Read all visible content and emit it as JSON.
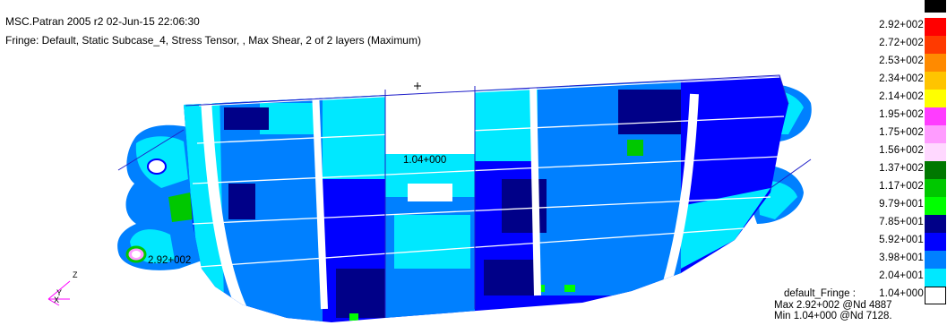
{
  "header": {
    "title": "MSC.Patran 2005 r2 02-Jun-15 22:06:30",
    "fringe_description": "Fringe: Default, Static Subcase_4, Stress Tensor, , Max Shear, 2 of 2 layers (Maximum)"
  },
  "legend": {
    "entries": [
      {
        "label": "",
        "color": "#000000"
      },
      {
        "label": "2.92+002",
        "color": "#ff0000"
      },
      {
        "label": "2.72+002",
        "color": "#ff3a00"
      },
      {
        "label": "2.53+002",
        "color": "#ff8a00"
      },
      {
        "label": "2.34+002",
        "color": "#ffc400"
      },
      {
        "label": "2.14+002",
        "color": "#ffff00"
      },
      {
        "label": "1.95+002",
        "color": "#ff3cff"
      },
      {
        "label": "1.75+002",
        "color": "#ff9cff"
      },
      {
        "label": "1.56+002",
        "color": "#ffd8ff"
      },
      {
        "label": "1.37+002",
        "color": "#007800"
      },
      {
        "label": "1.17+002",
        "color": "#00c800"
      },
      {
        "label": "9.79+001",
        "color": "#00ff00"
      },
      {
        "label": "7.85+001",
        "color": "#000088"
      },
      {
        "label": "5.92+001",
        "color": "#0000ff"
      },
      {
        "label": "3.98+001",
        "color": "#0080ff"
      },
      {
        "label": "2.04+001",
        "color": "#00e8ff"
      },
      {
        "label": "1.04+000",
        "color": "#ffffff"
      }
    ]
  },
  "summary": {
    "title": "default_Fringe :",
    "max": "Max 2.92+002 @Nd 4887",
    "min": "Min 1.04+000 @Nd 7128."
  },
  "model": {
    "min_label": "1.04+000",
    "max_label": "2.92+002"
  },
  "axes": {
    "x": "X",
    "y": "Y",
    "z": "Z",
    "color": "#ff00ff"
  }
}
